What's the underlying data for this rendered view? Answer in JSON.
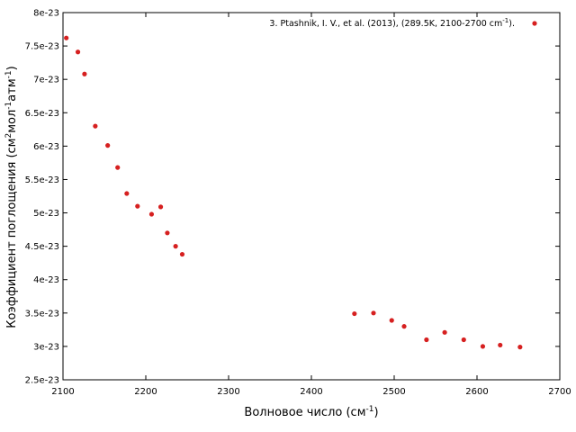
{
  "chart_data": {
    "type": "scatter",
    "title": "",
    "xlabel": {
      "base": "Волновое число (см",
      "sup": "-1",
      "tail": ")"
    },
    "ylabel": {
      "p1": "Коэффициент поглощения (см",
      "s1": "2",
      "p2": "мол",
      "s2": "-1",
      "p3": "атм",
      "s3": "-1",
      "p4": ")"
    },
    "xlim": [
      2100,
      2700
    ],
    "ylim": [
      2.5e-23,
      8e-23
    ],
    "x_ticks": [
      2100,
      2200,
      2300,
      2400,
      2500,
      2600,
      2700
    ],
    "x_tick_labels": [
      "2100",
      "2200",
      "2300",
      "2400",
      "2500",
      "2600",
      "2700"
    ],
    "y_ticks": [
      2.5e-23,
      3e-23,
      3.5e-23,
      4e-23,
      4.5e-23,
      5e-23,
      5.5e-23,
      6e-23,
      6.5e-23,
      7e-23,
      7.5e-23,
      8e-23
    ],
    "y_tick_labels": [
      "2.5e-23",
      "3e-23",
      "3.5e-23",
      "4e-23",
      "4.5e-23",
      "5e-23",
      "5.5e-23",
      "6e-23",
      "6.5e-23",
      "7e-23",
      "7.5e-23",
      "8e-23"
    ],
    "grid": false,
    "legend_position": "top-right",
    "series": [
      {
        "name": "3.  Ptashnik, I. V., et al. (2013), (289.5K, 2100-2700 cm",
        "name_sup": "-1",
        "name_tail": ").",
        "color": "#d62020",
        "x": [
          2104,
          2118,
          2126,
          2139,
          2154,
          2166,
          2177,
          2190,
          2207,
          2218,
          2226,
          2236,
          2244,
          2452,
          2475,
          2497,
          2512,
          2539,
          2561,
          2584,
          2607,
          2628,
          2652
        ],
        "y": [
          7.62e-23,
          7.41e-23,
          7.08e-23,
          6.3e-23,
          6.01e-23,
          5.68e-23,
          5.29e-23,
          5.1e-23,
          4.98e-23,
          5.09e-23,
          4.7e-23,
          4.5e-23,
          4.38e-23,
          3.49e-23,
          3.5e-23,
          3.39e-23,
          3.3e-23,
          3.1e-23,
          3.21e-23,
          3.1e-23,
          3e-23,
          3.02e-23,
          2.99e-23
        ]
      }
    ]
  }
}
